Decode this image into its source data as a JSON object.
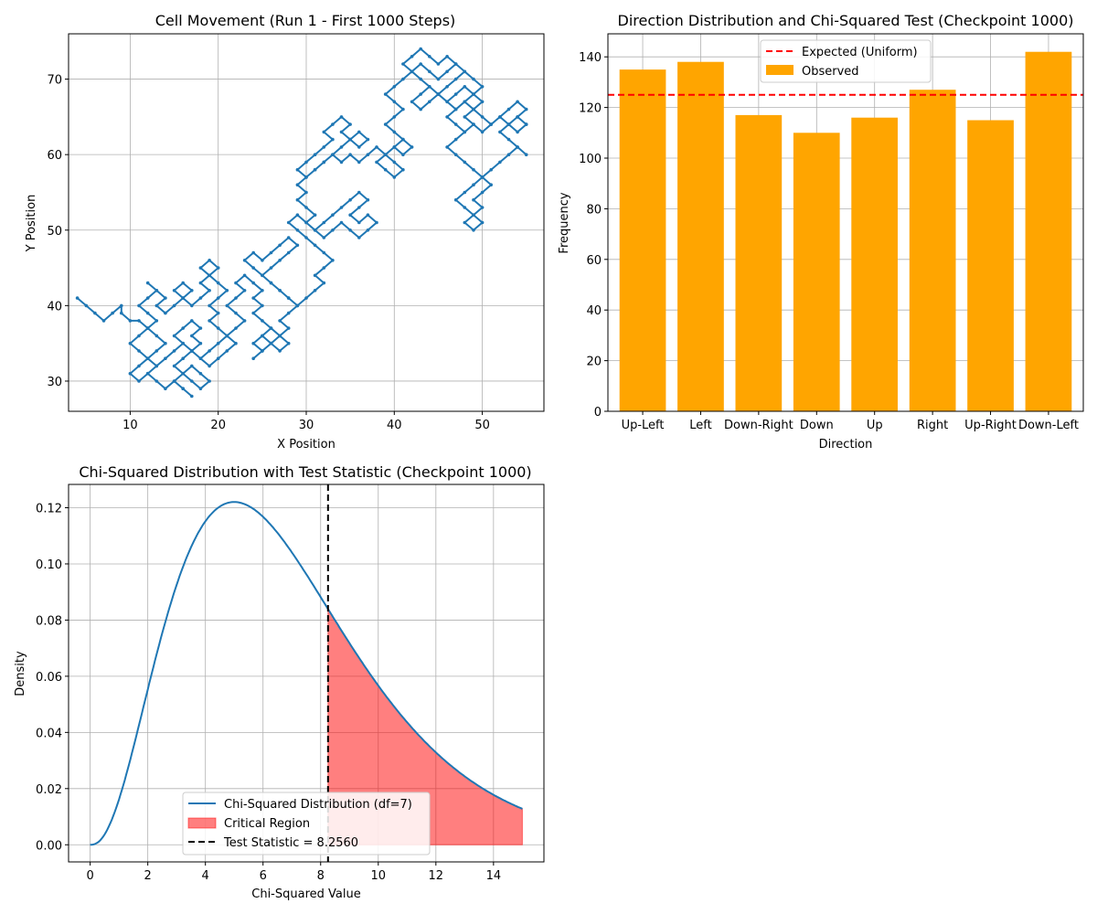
{
  "chart_data": [
    {
      "type": "line",
      "title": "Cell Movement (Run 1 - First 1000 Steps)",
      "xlabel": "X Position",
      "ylabel": "Y Position",
      "xlim": [
        3,
        57
      ],
      "ylim": [
        26,
        76
      ],
      "xticks": [
        10,
        20,
        30,
        40,
        50
      ],
      "yticks": [
        30,
        40,
        50,
        60,
        70
      ],
      "grid": true,
      "series_color": "#1f77b4",
      "path": [
        [
          4,
          41
        ],
        [
          5,
          40
        ],
        [
          6,
          39
        ],
        [
          7,
          38
        ],
        [
          8,
          39
        ],
        [
          9,
          40
        ],
        [
          9,
          39
        ],
        [
          10,
          38
        ],
        [
          11,
          38
        ],
        [
          12,
          37
        ],
        [
          11,
          36
        ],
        [
          10,
          35
        ],
        [
          11,
          34
        ],
        [
          12,
          33
        ],
        [
          11,
          32
        ],
        [
          10,
          31
        ],
        [
          11,
          30
        ],
        [
          12,
          31
        ],
        [
          13,
          32
        ],
        [
          12,
          33
        ],
        [
          13,
          34
        ],
        [
          14,
          35
        ],
        [
          13,
          36
        ],
        [
          12,
          37
        ],
        [
          13,
          38
        ],
        [
          12,
          39
        ],
        [
          11,
          40
        ],
        [
          12,
          41
        ],
        [
          13,
          42
        ],
        [
          12,
          43
        ],
        [
          13,
          42
        ],
        [
          14,
          41
        ],
        [
          13,
          40
        ],
        [
          14,
          39
        ],
        [
          15,
          40
        ],
        [
          16,
          41
        ],
        [
          15,
          42
        ],
        [
          16,
          43
        ],
        [
          17,
          42
        ],
        [
          16,
          41
        ],
        [
          17,
          40
        ],
        [
          18,
          41
        ],
        [
          19,
          42
        ],
        [
          18,
          43
        ],
        [
          19,
          44
        ],
        [
          18,
          45
        ],
        [
          19,
          46
        ],
        [
          20,
          45
        ],
        [
          19,
          44
        ],
        [
          20,
          43
        ],
        [
          21,
          42
        ],
        [
          20,
          41
        ],
        [
          19,
          40
        ],
        [
          20,
          39
        ],
        [
          19,
          38
        ],
        [
          20,
          37
        ],
        [
          21,
          36
        ],
        [
          20,
          35
        ],
        [
          19,
          34
        ],
        [
          18,
          33
        ],
        [
          17,
          34
        ],
        [
          16,
          35
        ],
        [
          15,
          34
        ],
        [
          14,
          33
        ],
        [
          13,
          32
        ],
        [
          12,
          31
        ],
        [
          13,
          30
        ],
        [
          14,
          29
        ],
        [
          15,
          30
        ],
        [
          16,
          29
        ],
        [
          17,
          28
        ],
        [
          16,
          29
        ],
        [
          15,
          30
        ],
        [
          16,
          31
        ],
        [
          17,
          32
        ],
        [
          18,
          31
        ],
        [
          19,
          30
        ],
        [
          18,
          29
        ],
        [
          17,
          30
        ],
        [
          16,
          31
        ],
        [
          15,
          32
        ],
        [
          16,
          33
        ],
        [
          17,
          34
        ],
        [
          16,
          35
        ],
        [
          15,
          36
        ],
        [
          16,
          37
        ],
        [
          17,
          38
        ],
        [
          18,
          37
        ],
        [
          17,
          36
        ],
        [
          18,
          35
        ],
        [
          17,
          34
        ],
        [
          18,
          33
        ],
        [
          19,
          32
        ],
        [
          20,
          33
        ],
        [
          21,
          34
        ],
        [
          22,
          35
        ],
        [
          21,
          36
        ],
        [
          22,
          37
        ],
        [
          23,
          38
        ],
        [
          22,
          39
        ],
        [
          21,
          40
        ],
        [
          22,
          41
        ],
        [
          23,
          42
        ],
        [
          22,
          43
        ],
        [
          23,
          44
        ],
        [
          24,
          43
        ],
        [
          25,
          42
        ],
        [
          24,
          41
        ],
        [
          25,
          40
        ],
        [
          24,
          39
        ],
        [
          25,
          38
        ],
        [
          26,
          37
        ],
        [
          25,
          36
        ],
        [
          26,
          35
        ],
        [
          25,
          34
        ],
        [
          24,
          35
        ],
        [
          25,
          36
        ],
        [
          26,
          37
        ],
        [
          27,
          36
        ],
        [
          28,
          35
        ],
        [
          27,
          34
        ],
        [
          26,
          35
        ],
        [
          25,
          34
        ],
        [
          24,
          33
        ],
        [
          25,
          34
        ],
        [
          26,
          35
        ],
        [
          27,
          36
        ],
        [
          28,
          37
        ],
        [
          27,
          38
        ],
        [
          28,
          39
        ],
        [
          29,
          40
        ],
        [
          28,
          41
        ],
        [
          27,
          42
        ],
        [
          26,
          43
        ],
        [
          25,
          44
        ],
        [
          24,
          45
        ],
        [
          23,
          46
        ],
        [
          24,
          47
        ],
        [
          25,
          46
        ],
        [
          26,
          47
        ],
        [
          27,
          48
        ],
        [
          28,
          49
        ],
        [
          29,
          48
        ],
        [
          28,
          47
        ],
        [
          27,
          46
        ],
        [
          26,
          45
        ],
        [
          25,
          44
        ],
        [
          26,
          43
        ],
        [
          27,
          42
        ],
        [
          28,
          41
        ],
        [
          29,
          40
        ],
        [
          30,
          41
        ],
        [
          31,
          42
        ],
        [
          32,
          43
        ],
        [
          31,
          44
        ],
        [
          32,
          45
        ],
        [
          33,
          46
        ],
        [
          32,
          47
        ],
        [
          31,
          48
        ],
        [
          30,
          49
        ],
        [
          29,
          50
        ],
        [
          28,
          51
        ],
        [
          29,
          52
        ],
        [
          30,
          51
        ],
        [
          31,
          50
        ],
        [
          32,
          51
        ],
        [
          33,
          52
        ],
        [
          34,
          53
        ],
        [
          35,
          54
        ],
        [
          36,
          55
        ],
        [
          37,
          54
        ],
        [
          36,
          53
        ],
        [
          35,
          52
        ],
        [
          36,
          51
        ],
        [
          37,
          52
        ],
        [
          38,
          51
        ],
        [
          37,
          50
        ],
        [
          36,
          49
        ],
        [
          35,
          50
        ],
        [
          34,
          51
        ],
        [
          33,
          50
        ],
        [
          32,
          49
        ],
        [
          31,
          50
        ],
        [
          30,
          51
        ],
        [
          31,
          52
        ],
        [
          30,
          53
        ],
        [
          29,
          54
        ],
        [
          30,
          55
        ],
        [
          29,
          56
        ],
        [
          30,
          57
        ],
        [
          29,
          58
        ],
        [
          30,
          59
        ],
        [
          31,
          60
        ],
        [
          32,
          61
        ],
        [
          33,
          62
        ],
        [
          32,
          63
        ],
        [
          33,
          64
        ],
        [
          34,
          65
        ],
        [
          35,
          64
        ],
        [
          34,
          63
        ],
        [
          35,
          62
        ],
        [
          36,
          61
        ],
        [
          37,
          62
        ],
        [
          36,
          63
        ],
        [
          35,
          62
        ],
        [
          34,
          61
        ],
        [
          33,
          60
        ],
        [
          32,
          59
        ],
        [
          31,
          58
        ],
        [
          30,
          57
        ],
        [
          31,
          58
        ],
        [
          32,
          59
        ],
        [
          33,
          60
        ],
        [
          34,
          59
        ],
        [
          35,
          60
        ],
        [
          36,
          59
        ],
        [
          37,
          60
        ],
        [
          38,
          61
        ],
        [
          39,
          60
        ],
        [
          40,
          59
        ],
        [
          41,
          58
        ],
        [
          40,
          57
        ],
        [
          39,
          58
        ],
        [
          38,
          59
        ],
        [
          39,
          60
        ],
        [
          40,
          61
        ],
        [
          41,
          62
        ],
        [
          42,
          61
        ],
        [
          41,
          60
        ],
        [
          40,
          61
        ],
        [
          41,
          62
        ],
        [
          40,
          63
        ],
        [
          39,
          64
        ],
        [
          40,
          65
        ],
        [
          41,
          66
        ],
        [
          40,
          67
        ],
        [
          39,
          68
        ],
        [
          40,
          69
        ],
        [
          41,
          70
        ],
        [
          42,
          71
        ],
        [
          43,
          72
        ],
        [
          44,
          71
        ],
        [
          45,
          70
        ],
        [
          46,
          71
        ],
        [
          47,
          72
        ],
        [
          48,
          71
        ],
        [
          47,
          70
        ],
        [
          46,
          69
        ],
        [
          45,
          68
        ],
        [
          46,
          67
        ],
        [
          47,
          68
        ],
        [
          48,
          69
        ],
        [
          49,
          68
        ],
        [
          50,
          67
        ],
        [
          49,
          66
        ],
        [
          48,
          65
        ],
        [
          49,
          64
        ],
        [
          48,
          63
        ],
        [
          47,
          62
        ],
        [
          46,
          61
        ],
        [
          47,
          60
        ],
        [
          48,
          59
        ],
        [
          49,
          58
        ],
        [
          50,
          57
        ],
        [
          51,
          56
        ],
        [
          50,
          55
        ],
        [
          49,
          54
        ],
        [
          50,
          53
        ],
        [
          49,
          52
        ],
        [
          48,
          51
        ],
        [
          49,
          50
        ],
        [
          50,
          51
        ],
        [
          49,
          52
        ],
        [
          48,
          53
        ],
        [
          47,
          54
        ],
        [
          48,
          55
        ],
        [
          49,
          56
        ],
        [
          50,
          57
        ],
        [
          51,
          58
        ],
        [
          52,
          59
        ],
        [
          53,
          60
        ],
        [
          54,
          61
        ],
        [
          55,
          60
        ],
        [
          54,
          61
        ],
        [
          53,
          62
        ],
        [
          52,
          63
        ],
        [
          53,
          64
        ],
        [
          54,
          65
        ],
        [
          55,
          64
        ],
        [
          54,
          63
        ],
        [
          53,
          64
        ],
        [
          52,
          65
        ],
        [
          51,
          64
        ],
        [
          50,
          65
        ],
        [
          49,
          66
        ],
        [
          48,
          67
        ],
        [
          47,
          66
        ],
        [
          46,
          67
        ],
        [
          45,
          68
        ],
        [
          44,
          69
        ],
        [
          43,
          68
        ],
        [
          42,
          67
        ],
        [
          43,
          66
        ],
        [
          44,
          67
        ],
        [
          45,
          68
        ],
        [
          44,
          69
        ],
        [
          43,
          70
        ],
        [
          42,
          71
        ],
        [
          41,
          72
        ],
        [
          42,
          73
        ],
        [
          43,
          74
        ],
        [
          44,
          73
        ],
        [
          45,
          72
        ],
        [
          46,
          73
        ],
        [
          47,
          72
        ],
        [
          48,
          71
        ],
        [
          49,
          70
        ],
        [
          50,
          69
        ],
        [
          49,
          68
        ],
        [
          48,
          67
        ],
        [
          47,
          66
        ],
        [
          46,
          65
        ],
        [
          47,
          64
        ],
        [
          48,
          63
        ],
        [
          49,
          64
        ],
        [
          50,
          63
        ],
        [
          51,
          64
        ],
        [
          52,
          65
        ],
        [
          53,
          66
        ],
        [
          54,
          67
        ],
        [
          55,
          66
        ],
        [
          54,
          65
        ],
        [
          55,
          64
        ]
      ]
    },
    {
      "type": "bar",
      "title": "Direction Distribution and Chi-Squared Test (Checkpoint 1000)",
      "xlabel": "Direction",
      "ylabel": "Frequency",
      "categories": [
        "Up-Left",
        "Left",
        "Down-Right",
        "Down",
        "Up",
        "Right",
        "Up-Right",
        "Down-Left"
      ],
      "series": [
        {
          "name": "Observed",
          "values": [
            135,
            138,
            117,
            110,
            116,
            127,
            115,
            142
          ]
        }
      ],
      "expected_value": 125,
      "expected_label": "Expected (Uniform)",
      "ylim": [
        0,
        149.1
      ],
      "yticks": [
        0,
        20,
        40,
        60,
        80,
        100,
        120,
        140
      ],
      "legend_placement": "upper center",
      "grid": true,
      "bar_color": "#ffa500",
      "expected_color": "#ff0000"
    },
    {
      "type": "line",
      "title": "Chi-Squared Distribution with Test Statistic (Checkpoint 1000)",
      "xlabel": "Chi-Squared Value",
      "ylabel": "Density",
      "df": 7,
      "x_range": [
        0,
        15
      ],
      "xlim": [
        -0.75,
        15.75
      ],
      "ylim": [
        -0.0061,
        0.1283
      ],
      "xticks": [
        0,
        2,
        4,
        6,
        8,
        10,
        12,
        14
      ],
      "yticks": [
        0.0,
        0.02,
        0.04,
        0.06,
        0.08,
        0.1,
        0.12
      ],
      "test_statistic": 8.256,
      "legend": [
        "Chi-Squared Distribution (df=7)",
        "Critical Region",
        "Test Statistic = 8.2560"
      ],
      "legend_placement": "lower center",
      "grid": true,
      "curve_color": "#1f77b4",
      "region_color": "#ff0000",
      "stat_line_color": "#000000"
    }
  ]
}
